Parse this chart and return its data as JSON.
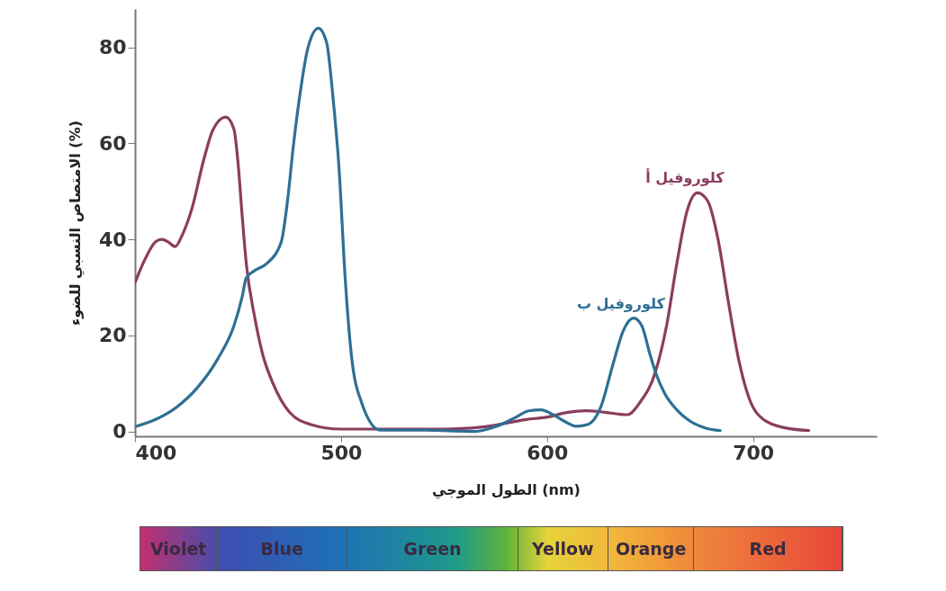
{
  "chart_data": {
    "type": "line",
    "xlabel": "الطول الموجي (nm)",
    "ylabel": "الامتصاص النسبي للضوء (%)",
    "xlim": [
      400,
      760
    ],
    "xticks": [
      400,
      500,
      600,
      700
    ],
    "ylim": [
      -1,
      88
    ],
    "yticks": [
      0,
      20,
      40,
      60,
      80
    ],
    "grid": false,
    "marker": "none",
    "line_style": "solid",
    "series": [
      {
        "name": "كلوروفيل أ",
        "color": "#8b3d5e",
        "x": [
          400,
          405,
          410,
          413,
          416,
          419.5,
          423,
          428,
          433,
          438,
          444,
          448,
          450,
          452,
          454,
          458,
          462,
          467,
          475,
          485,
          500,
          550,
          570,
          590,
          600,
          610,
          619,
          628,
          639,
          645,
          652.6,
          658,
          663,
          668,
          673,
          678,
          683,
          688,
          693,
          698,
          705,
          715,
          727
        ],
        "values": [
          31,
          36,
          39.5,
          40,
          39.5,
          38.5,
          41,
          47,
          56,
          63,
          65.5,
          63,
          56,
          45,
          35,
          24,
          16,
          10,
          4,
          1.5,
          0.5,
          0.5,
          1,
          2.5,
          3,
          4,
          4.3,
          4,
          3.5,
          6,
          12.4,
          22,
          35,
          46,
          49.7,
          48,
          40,
          27,
          15,
          7,
          2.5,
          0.8,
          0.2
        ]
      },
      {
        "name": "كلوروفيل ب",
        "color": "#2f6f95",
        "x": [
          400,
          410,
          420,
          430,
          440,
          448,
          452,
          454,
          458,
          464,
          471,
          474,
          477,
          480,
          484,
          489,
          493,
          496,
          499,
          502,
          505,
          510,
          519,
          540,
          565,
          575,
          585,
          591,
          597,
          603,
          609,
          614,
          620,
          626,
          632,
          637,
          642,
          646,
          650,
          652.6,
          657,
          663,
          670,
          677,
          684
        ],
        "values": [
          1,
          2.5,
          5,
          9,
          15,
          22,
          28,
          32,
          33.5,
          35,
          39.5,
          48,
          60,
          70,
          80,
          84,
          81,
          70,
          55,
          32,
          16,
          6,
          0.3,
          0.3,
          0,
          1,
          3,
          4.3,
          4.5,
          3.5,
          2,
          1.1,
          1.5,
          5,
          14,
          21,
          23.6,
          22,
          16,
          12.4,
          8,
          4.5,
          2,
          0.7,
          0.2
        ]
      }
    ],
    "annotations": [
      "Violet",
      "Blue",
      "Green",
      "Yellow",
      "Orange",
      "Red"
    ]
  }
}
